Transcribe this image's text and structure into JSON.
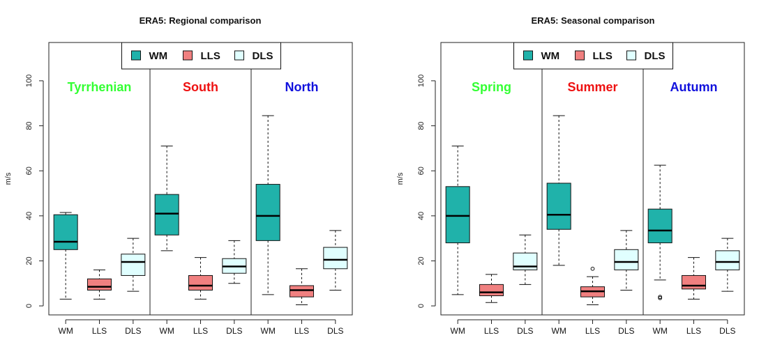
{
  "chart_data": [
    {
      "type": "boxplot",
      "title": "ERA5: Regional comparison",
      "ylabel": "m/s",
      "ylim": [
        -4,
        117
      ],
      "yticks": [
        0,
        20,
        40,
        60,
        80,
        100
      ],
      "legend": {
        "placement": "top-center",
        "entries": [
          {
            "label": "WM",
            "color": "#20B2AA"
          },
          {
            "label": "LLS",
            "color": "#F08080"
          },
          {
            "label": "DLS",
            "color": "#E0FFFF"
          }
        ]
      },
      "groups": [
        {
          "label": "Tyrrhenian",
          "color": "#33FF33",
          "boxes": [
            {
              "category": "WM",
              "min": 3,
              "q1": 25,
              "median": 28.5,
              "q3": 40.5,
              "max": 41.5,
              "outliers": []
            },
            {
              "category": "LLS",
              "min": 3,
              "q1": 7,
              "median": 8.5,
              "q3": 12,
              "max": 16,
              "outliers": []
            },
            {
              "category": "DLS",
              "min": 6.5,
              "q1": 13.5,
              "median": 19.5,
              "q3": 23,
              "max": 30,
              "outliers": []
            }
          ]
        },
        {
          "label": "South",
          "color": "#EE1111",
          "boxes": [
            {
              "category": "WM",
              "min": 24.5,
              "q1": 31.5,
              "median": 41,
              "q3": 49.5,
              "max": 71,
              "outliers": []
            },
            {
              "category": "LLS",
              "min": 3,
              "q1": 7,
              "median": 9,
              "q3": 13.5,
              "max": 21.5,
              "outliers": []
            },
            {
              "category": "DLS",
              "min": 10,
              "q1": 14.5,
              "median": 17.5,
              "q3": 21,
              "max": 29,
              "outliers": []
            }
          ]
        },
        {
          "label": "North",
          "color": "#1111DD",
          "boxes": [
            {
              "category": "WM",
              "min": 5,
              "q1": 29,
              "median": 40,
              "q3": 54,
              "max": 84.5,
              "outliers": []
            },
            {
              "category": "LLS",
              "min": 0.5,
              "q1": 4,
              "median": 7,
              "q3": 9,
              "max": 16.5,
              "outliers": []
            },
            {
              "category": "DLS",
              "min": 7,
              "q1": 16.5,
              "median": 20.5,
              "q3": 26,
              "max": 33.5,
              "outliers": []
            }
          ]
        }
      ]
    },
    {
      "type": "boxplot",
      "title": "ERA5: Seasonal comparison",
      "ylabel": "m/s",
      "ylim": [
        -4,
        117
      ],
      "yticks": [
        0,
        20,
        40,
        60,
        80,
        100
      ],
      "legend": {
        "placement": "top-center",
        "entries": [
          {
            "label": "WM",
            "color": "#20B2AA"
          },
          {
            "label": "LLS",
            "color": "#F08080"
          },
          {
            "label": "DLS",
            "color": "#E0FFFF"
          }
        ]
      },
      "groups": [
        {
          "label": "Spring",
          "color": "#33FF33",
          "boxes": [
            {
              "category": "WM",
              "min": 5,
              "q1": 28,
              "median": 40,
              "q3": 53,
              "max": 71,
              "outliers": []
            },
            {
              "category": "LLS",
              "min": 1.5,
              "q1": 4.5,
              "median": 6,
              "q3": 9.5,
              "max": 14,
              "outliers": []
            },
            {
              "category": "DLS",
              "min": 9.5,
              "q1": 16,
              "median": 17.5,
              "q3": 23.5,
              "max": 31.5,
              "outliers": []
            }
          ]
        },
        {
          "label": "Summer",
          "color": "#EE1111",
          "boxes": [
            {
              "category": "WM",
              "min": 18,
              "q1": 34,
              "median": 40.5,
              "q3": 54.5,
              "max": 84.5,
              "outliers": []
            },
            {
              "category": "LLS",
              "min": 0.5,
              "q1": 4,
              "median": 6.5,
              "q3": 8.5,
              "max": 13,
              "outliers": [
                16.5
              ]
            },
            {
              "category": "DLS",
              "min": 7,
              "q1": 16,
              "median": 19.5,
              "q3": 25,
              "max": 33.5,
              "outliers": []
            }
          ]
        },
        {
          "label": "Autumn",
          "color": "#1111DD",
          "boxes": [
            {
              "category": "WM",
              "min": 11.5,
              "q1": 28,
              "median": 33.5,
              "q3": 43,
              "max": 62.5,
              "outliers": [
                3.5,
                4
              ]
            },
            {
              "category": "LLS",
              "min": 3,
              "q1": 7.5,
              "median": 9,
              "q3": 13.5,
              "max": 21.5,
              "outliers": []
            },
            {
              "category": "DLS",
              "min": 6.5,
              "q1": 16,
              "median": 19.5,
              "q3": 24.5,
              "max": 30,
              "outliers": []
            }
          ]
        }
      ]
    }
  ]
}
